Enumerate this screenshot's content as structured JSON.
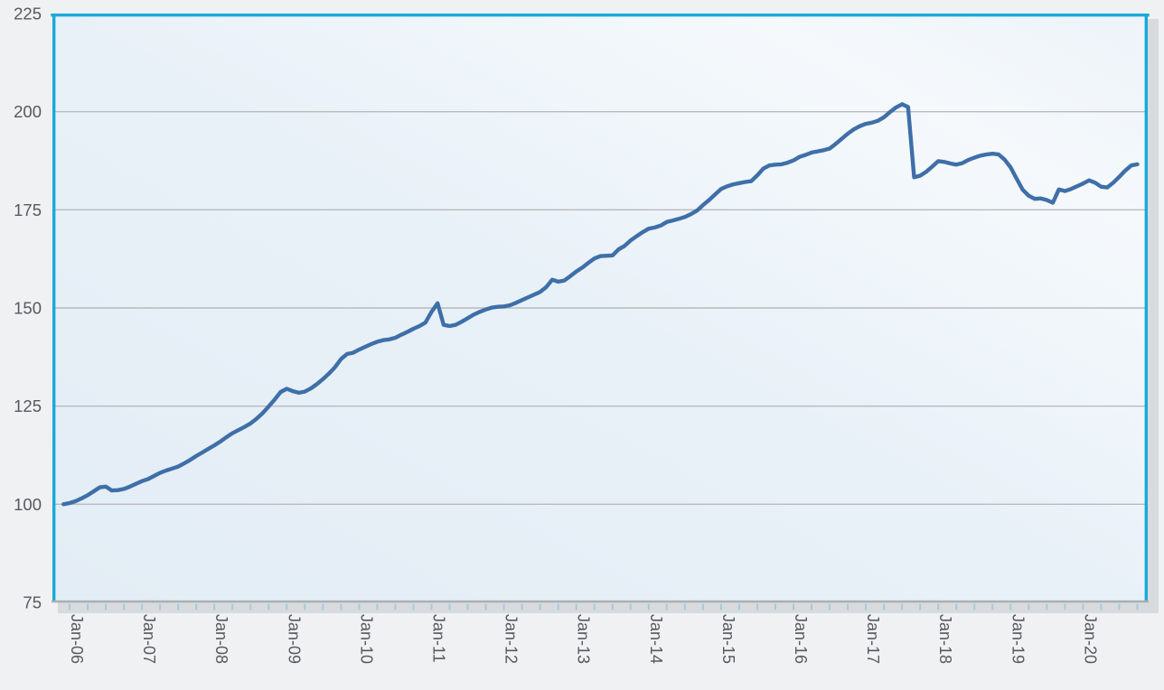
{
  "chart_data": {
    "type": "line",
    "title": "",
    "xlabel": "",
    "ylabel": "",
    "frequency": "monthly",
    "x_start": "Dec-05",
    "x_end": "Oct-20",
    "series": [
      {
        "name": "index",
        "values": [
          100.0,
          100.3,
          100.8,
          101.5,
          102.3,
          103.3,
          104.3,
          104.5,
          103.5,
          103.6,
          103.9,
          104.5,
          105.2,
          105.9,
          106.4,
          107.2,
          108.0,
          108.6,
          109.1,
          109.6,
          110.4,
          111.3,
          112.3,
          113.2,
          114.1,
          115.0,
          116.0,
          117.1,
          118.1,
          118.9,
          119.7,
          120.6,
          121.8,
          123.2,
          124.9,
          126.7,
          128.6,
          129.4,
          128.8,
          128.4,
          128.7,
          129.5,
          130.6,
          131.9,
          133.3,
          134.9,
          137.0,
          138.3,
          138.6,
          139.4,
          140.1,
          140.8,
          141.4,
          141.8,
          142.0,
          142.4,
          143.2,
          143.9,
          144.7,
          145.4,
          146.3,
          149.0,
          151.2,
          145.7,
          145.4,
          145.7,
          146.5,
          147.4,
          148.3,
          149.0,
          149.6,
          150.1,
          150.3,
          150.4,
          150.7,
          151.3,
          152.0,
          152.7,
          153.4,
          154.1,
          155.3,
          157.2,
          156.7,
          157.0,
          158.1,
          159.3,
          160.3,
          161.5,
          162.6,
          163.2,
          163.3,
          163.4,
          164.9,
          165.8,
          167.2,
          168.3,
          169.3,
          170.2,
          170.5,
          171.0,
          171.9,
          172.3,
          172.7,
          173.2,
          173.9,
          174.8,
          176.2,
          177.5,
          178.9,
          180.3,
          181.0,
          181.5,
          181.8,
          182.1,
          182.3,
          183.8,
          185.5,
          186.3,
          186.5,
          186.6,
          187.0,
          187.6,
          188.5,
          189.0,
          189.6,
          189.9,
          190.2,
          190.6,
          191.8,
          193.1,
          194.4,
          195.5,
          196.3,
          196.9,
          197.2,
          197.7,
          198.6,
          199.9,
          201.1,
          201.9,
          201.2,
          183.3,
          183.7,
          184.7,
          186.0,
          187.4,
          187.2,
          186.8,
          186.5,
          186.9,
          187.7,
          188.3,
          188.8,
          189.1,
          189.3,
          189.1,
          187.8,
          185.8,
          182.9,
          180.1,
          178.6,
          177.8,
          177.9,
          177.5,
          176.8,
          180.2,
          179.8,
          180.3,
          181.0,
          181.7,
          182.5,
          181.9,
          180.9,
          180.7,
          181.9,
          183.4,
          185.0,
          186.3,
          186.6
        ]
      }
    ],
    "x_tick_labels": [
      "Jan-06",
      "Jan-07",
      "Jan-08",
      "Jan-09",
      "Jan-10",
      "Jan-11",
      "Jan-12",
      "Jan-13",
      "Jan-14",
      "Jan-15",
      "Jan-16",
      "Jan-17",
      "Jan-18",
      "Jan-19",
      "Jan-20"
    ],
    "x_minor_tick_every_months": 3,
    "y_tick_labels": [
      "225",
      "200",
      "175",
      "150",
      "125",
      "100",
      "75"
    ],
    "y_ticks": [
      225,
      200,
      175,
      150,
      125,
      100,
      75
    ],
    "ylim": [
      75,
      225
    ],
    "grid": "horizontal",
    "legend": "none"
  },
  "colors": {
    "line": "#3f6fa8",
    "plot_border": "#1aa9da",
    "axis_line": "#a9aeb3",
    "gridline": "#b9babc",
    "label_text": "#57595c",
    "minor_tick": "#a6c9dc",
    "shadow": "#d8dbde",
    "page_background": "#eff1f3",
    "plot_bg_1": "#e3edf5",
    "plot_bg_2": "#e9f1f8",
    "plot_bg_3": "#f5f9fc",
    "plot_bg_4": "#edf3f9"
  }
}
